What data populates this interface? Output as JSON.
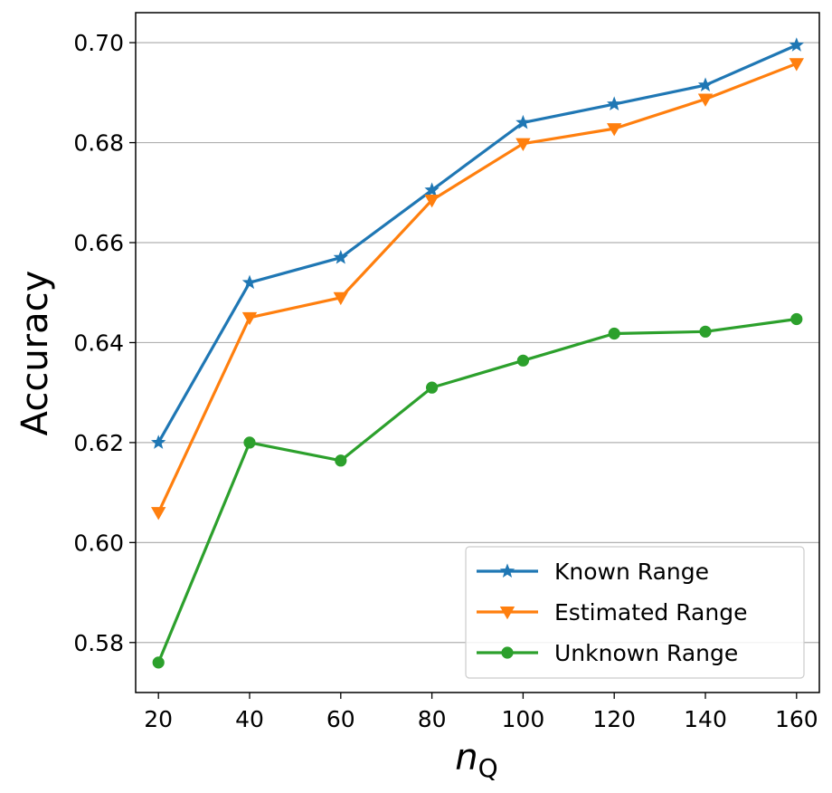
{
  "chart_data": {
    "type": "line",
    "title": "",
    "xlabel_main": "n",
    "xlabel_sub": "Q",
    "ylabel": "Accuracy",
    "x": [
      20,
      40,
      60,
      80,
      100,
      120,
      140,
      160
    ],
    "xticks": [
      "20",
      "40",
      "60",
      "80",
      "100",
      "120",
      "140",
      "160"
    ],
    "ylim": [
      0.57,
      0.706
    ],
    "yticks": [
      "0.58",
      "0.60",
      "0.62",
      "0.64",
      "0.66",
      "0.68",
      "0.70"
    ],
    "ytick_values": [
      0.58,
      0.6,
      0.62,
      0.64,
      0.66,
      0.68,
      0.7
    ],
    "grid": "y",
    "legend_position": "lower-right",
    "series": [
      {
        "name": "Known Range",
        "color": "#1f77b4",
        "marker": "star",
        "values": [
          0.62,
          0.652,
          0.657,
          0.6705,
          0.684,
          0.6877,
          0.6915,
          0.6995
        ]
      },
      {
        "name": "Estimated Range",
        "color": "#ff7f0e",
        "marker": "triangle-down",
        "values": [
          0.606,
          0.645,
          0.649,
          0.6685,
          0.6798,
          0.6828,
          0.6887,
          0.6958
        ]
      },
      {
        "name": "Unknown Range",
        "color": "#2ca02c",
        "marker": "circle",
        "values": [
          0.576,
          0.62,
          0.6164,
          0.631,
          0.6364,
          0.6418,
          0.6422,
          0.6447
        ]
      }
    ]
  }
}
